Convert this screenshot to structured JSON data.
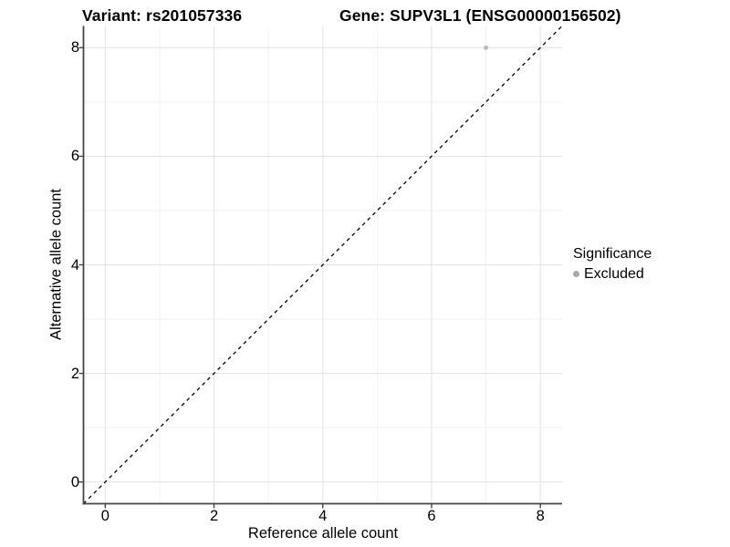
{
  "header": {
    "variant_title": "Variant: rs201057336",
    "gene_title": "Gene: SUPV3L1 (ENSG00000156502)"
  },
  "legend": {
    "title": "Significance",
    "items": [
      {
        "label": "Excluded",
        "color": "#a8a8a8"
      }
    ]
  },
  "colors": {
    "point": "#bdbdbd",
    "grid_major": "#e4e4e4",
    "grid_minor": "#f2f2f2",
    "axis_line": "#454545",
    "tick_mark": "#454545",
    "reference_line": "#000000",
    "text": "#000000"
  },
  "chart_data": {
    "type": "scatter",
    "title_left": "Variant: rs201057336",
    "title_right": "Gene: SUPV3L1 (ENSG00000156502)",
    "xlabel": "Reference allele count",
    "ylabel": "Alternative allele count",
    "xlim": [
      -0.4,
      8.4
    ],
    "ylim": [
      -0.4,
      8.4
    ],
    "x_ticks": [
      0,
      2,
      4,
      6,
      8
    ],
    "y_ticks": [
      0,
      2,
      4,
      6,
      8
    ],
    "x_minor_ticks": [
      1,
      3,
      5,
      7
    ],
    "y_minor_ticks": [
      1,
      3,
      5,
      7
    ],
    "grid": true,
    "legend_title": "Significance",
    "legend_position": "right",
    "series": [
      {
        "name": "Excluded",
        "color": "#bdbdbd",
        "points": [
          {
            "x": 7,
            "y": 8
          }
        ]
      }
    ],
    "reference_line": {
      "equation": "y = x",
      "style": "dashed",
      "color": "#000000"
    }
  }
}
